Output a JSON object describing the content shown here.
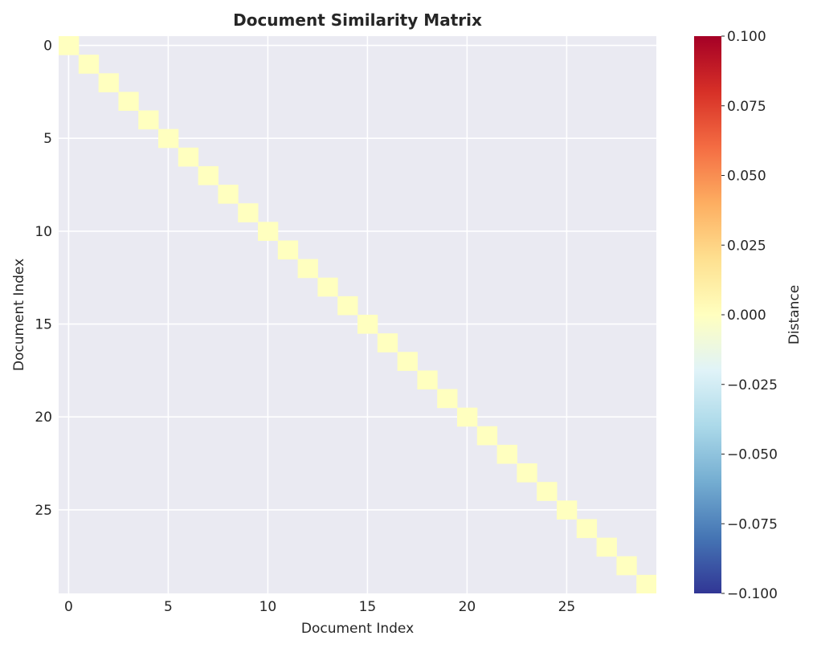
{
  "chart_data": {
    "type": "heatmap",
    "title": "Document Similarity Matrix",
    "xlabel": "Document Index",
    "ylabel": "Document Index",
    "n_docs": 30,
    "grid": true,
    "x_ticks": [
      "0",
      "5",
      "10",
      "15",
      "20",
      "25"
    ],
    "y_ticks": [
      "0",
      "5",
      "10",
      "15",
      "20",
      "25"
    ],
    "x_tick_values": [
      0,
      5,
      10,
      15,
      20,
      25
    ],
    "y_tick_values": [
      0,
      5,
      10,
      15,
      20,
      25
    ],
    "cells_description": "diagonal cells (i,i) have value 0.000; off-diagonal cells are not drawn (masked)",
    "diagonal_value": 0.0,
    "diagonal_color": "#ffffbf",
    "background_color": "#eaeaf2",
    "colorbar": {
      "label": "Distance",
      "colormap": "RdYlBu_r",
      "vmin": -0.1,
      "vmax": 0.1,
      "ticks": [
        "0.100",
        "0.075",
        "0.050",
        "0.025",
        "0.000",
        "−0.025",
        "−0.050",
        "−0.075",
        "−0.100"
      ],
      "tick_values": [
        0.1,
        0.075,
        0.05,
        0.025,
        0.0,
        -0.025,
        -0.05,
        -0.075,
        -0.1
      ],
      "colors": [
        "#a50026",
        "#d73027",
        "#f46d43",
        "#fdae61",
        "#fee090",
        "#ffffbf",
        "#e0f3f8",
        "#abd9e9",
        "#74add1",
        "#4575b4",
        "#313695"
      ]
    }
  }
}
